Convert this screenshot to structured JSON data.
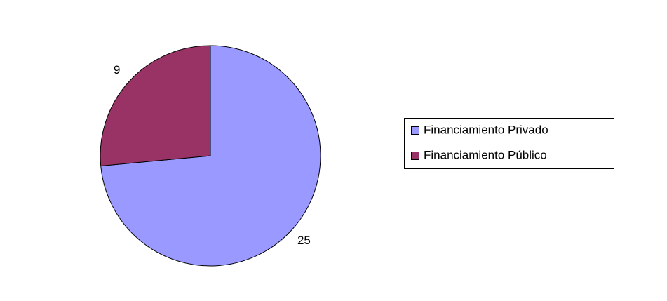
{
  "chart_data": {
    "type": "pie",
    "categories": [
      "Financiamiento Privado",
      "Financiamiento Público"
    ],
    "values": [
      25,
      9
    ],
    "colors": [
      "#9999ff",
      "#993366"
    ],
    "legend": "right"
  }
}
